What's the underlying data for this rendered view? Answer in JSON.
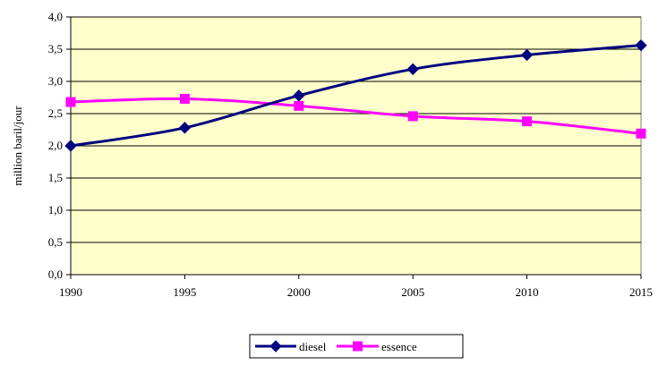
{
  "chart_data": {
    "type": "line",
    "title": "",
    "xlabel": "",
    "ylabel": "million baril/jour",
    "x": [
      1990,
      1995,
      2000,
      2005,
      2010,
      2015
    ],
    "x_tick_labels": [
      "1990",
      "1995",
      "2000",
      "2005",
      "2010",
      "2015"
    ],
    "ylim": [
      0,
      4
    ],
    "y_tick_labels": [
      "0,0",
      "0,5",
      "1,0",
      "1,5",
      "2,0",
      "2,5",
      "3,0",
      "3,5",
      "4,0"
    ],
    "grid": "horizontal",
    "legend_position": "bottom",
    "plot_background": "#FFFFCC",
    "series": [
      {
        "name": "diesel",
        "values": [
          2.0,
          2.28,
          2.78,
          3.19,
          3.41,
          3.56
        ],
        "color": "#000080",
        "marker": "diamond"
      },
      {
        "name": "essence",
        "values": [
          2.68,
          2.73,
          2.62,
          2.46,
          2.38,
          2.19
        ],
        "color": "#FF00FF",
        "marker": "square"
      }
    ]
  }
}
